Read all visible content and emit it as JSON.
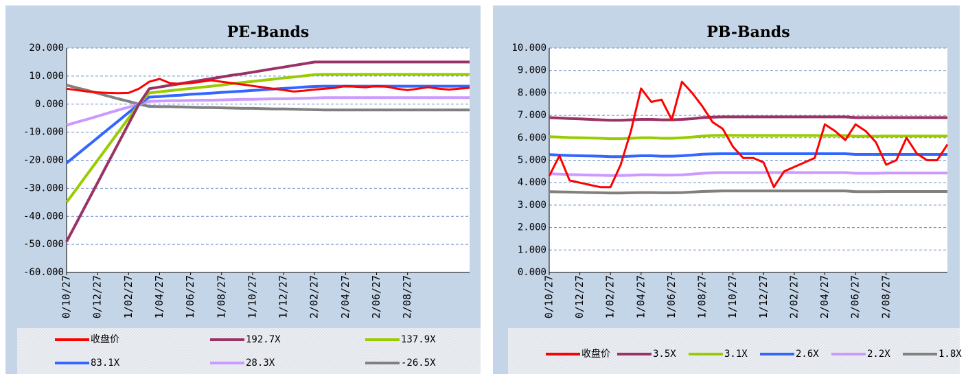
{
  "chart_data": [
    {
      "type": "line",
      "title": "PE-Bands",
      "grid": true,
      "legend": "bottom",
      "categories": [
        "0/10/27",
        null,
        null,
        "0/12/27",
        null,
        null,
        "1/02/27",
        null,
        null,
        "1/04/27",
        null,
        null,
        "1/06/27",
        null,
        null,
        "1/08/27",
        null,
        null,
        "1/10/27",
        null,
        null,
        "1/12/27",
        null,
        null,
        "2/02/27",
        null,
        null,
        "2/04/27",
        null,
        null,
        "2/06/27",
        null,
        null,
        "2/08/27",
        null,
        null,
        null,
        null,
        null,
        null
      ],
      "ylim": [
        -60,
        20
      ],
      "yticks": [
        {
          "value": -60,
          "label": "-60.000"
        },
        {
          "value": -50,
          "label": "-50.000"
        },
        {
          "value": -40,
          "label": "-40.000"
        },
        {
          "value": -30,
          "label": "-30.000"
        },
        {
          "value": -20,
          "label": "-20.000"
        },
        {
          "value": -10,
          "label": "-10.000"
        },
        {
          "value": 0,
          "label": "0.000"
        },
        {
          "value": 10,
          "label": "10.000"
        },
        {
          "value": 20,
          "label": "20.000"
        }
      ],
      "series": [
        {
          "name": "收盘价",
          "color": "#ff0000",
          "values": [
            5.5,
            5,
            4.5,
            4.2,
            4,
            3.9,
            4,
            5.5,
            8,
            9,
            7.5,
            7.2,
            7.5,
            8,
            8.5,
            8,
            7.5,
            7,
            6.5,
            6,
            5.5,
            5,
            4.5,
            4.8,
            5.2,
            5.5,
            5.8,
            6.5,
            6.2,
            6,
            6.5,
            6.2,
            5.5,
            5,
            5.5,
            6,
            5.5,
            5.2,
            5.5,
            5.8
          ]
        },
        {
          "name": "192.7X",
          "color": "#993366",
          "values": [
            -49,
            -42,
            -35,
            -28,
            -21,
            -14,
            -7,
            0,
            5.5,
            6.1,
            6.7,
            7.3,
            7.9,
            8.5,
            9.1,
            9.7,
            10.3,
            10.8,
            11.4,
            12,
            12.6,
            13.2,
            13.8,
            14.4,
            15,
            15,
            15,
            15,
            15,
            15,
            15,
            15,
            15,
            15,
            15,
            15,
            15,
            15,
            15,
            15
          ]
        },
        {
          "name": "137.9X",
          "color": "#99cc00",
          "values": [
            -35,
            -30,
            -25,
            -20,
            -15,
            -10,
            -5,
            0,
            4,
            4.4,
            4.8,
            5.2,
            5.6,
            6,
            6.4,
            6.8,
            7.3,
            7.7,
            8.1,
            8.5,
            8.9,
            9.3,
            9.7,
            10.1,
            10.5,
            10.6,
            10.6,
            10.6,
            10.6,
            10.6,
            10.6,
            10.6,
            10.6,
            10.6,
            10.6,
            10.6,
            10.6,
            10.6,
            10.6,
            10.6
          ]
        },
        {
          "name": "83.1X",
          "color": "#3366ff",
          "values": [
            -21,
            -18,
            -15,
            -12,
            -9,
            -6,
            -3,
            0,
            2.5,
            2.7,
            3,
            3.2,
            3.5,
            3.7,
            3.9,
            4.2,
            4.4,
            4.6,
            4.9,
            5.1,
            5.4,
            5.6,
            5.8,
            6.1,
            6.3,
            6.4,
            6.4,
            6.4,
            6.4,
            6.4,
            6.4,
            6.4,
            6.4,
            6.4,
            6.4,
            6.4,
            6.4,
            6.4,
            6.4,
            6.4
          ]
        },
        {
          "name": "28.3X",
          "color": "#cc99ff",
          "values": [
            -7.5,
            -6.4,
            -5.4,
            -4.3,
            -3.2,
            -2.1,
            -1.1,
            0,
            1,
            1.1,
            1.2,
            1.2,
            1.3,
            1.4,
            1.4,
            1.5,
            1.6,
            1.7,
            1.7,
            1.8,
            1.9,
            1.9,
            2,
            2.1,
            2.2,
            2.3,
            2.3,
            2.3,
            2.3,
            2.3,
            2.3,
            2.3,
            2.3,
            2.3,
            2.3,
            2.3,
            2.3,
            2.3,
            2.3,
            2.3
          ]
        },
        {
          "name": "-26.5X",
          "color": "#808080",
          "values": [
            6.8,
            5.8,
            4.9,
            3.9,
            2.9,
            1.9,
            1,
            0,
            -0.8,
            -0.9,
            -0.9,
            -1,
            -1.1,
            -1.2,
            -1.2,
            -1.3,
            -1.4,
            -1.5,
            -1.5,
            -1.6,
            -1.7,
            -1.7,
            -1.8,
            -1.9,
            -2,
            -2.1,
            -2.1,
            -2.1,
            -2.1,
            -2.1,
            -2.1,
            -2.1,
            -2.1,
            -2.1,
            -2.1,
            -2.1,
            -2.1,
            -2.1,
            -2.1,
            -2.1
          ]
        }
      ]
    },
    {
      "type": "line",
      "title": "PB-Bands",
      "grid": true,
      "legend": "bottom",
      "categories": [
        "0/10/27",
        null,
        null,
        "0/12/27",
        null,
        null,
        "1/02/27",
        null,
        null,
        "1/04/27",
        null,
        null,
        "1/06/27",
        null,
        null,
        "1/08/27",
        null,
        null,
        "1/10/27",
        null,
        null,
        "1/12/27",
        null,
        null,
        "2/02/27",
        null,
        null,
        "2/04/27",
        null,
        null,
        "2/06/27",
        null,
        null,
        "2/08/27",
        null,
        null,
        null,
        null,
        null,
        null
      ],
      "ylim": [
        0,
        10
      ],
      "yticks": [
        {
          "value": 0,
          "label": "0.000"
        },
        {
          "value": 1,
          "label": "1.000"
        },
        {
          "value": 2,
          "label": "2.000"
        },
        {
          "value": 3,
          "label": "3.000"
        },
        {
          "value": 4,
          "label": "4.000"
        },
        {
          "value": 5,
          "label": "5.000"
        },
        {
          "value": 6,
          "label": "6.000"
        },
        {
          "value": 7,
          "label": "7.000"
        },
        {
          "value": 8,
          "label": "8.000"
        },
        {
          "value": 9,
          "label": "9.000"
        },
        {
          "value": 10,
          "label": "10.000"
        }
      ],
      "series": [
        {
          "name": "收盘价",
          "color": "#ff0000",
          "values": [
            4.3,
            5.2,
            4.1,
            4,
            3.9,
            3.8,
            3.8,
            4.8,
            6.3,
            8.2,
            7.6,
            7.7,
            6.8,
            8.5,
            8,
            7.4,
            6.7,
            6.4,
            5.6,
            5.1,
            5.1,
            4.9,
            3.8,
            4.5,
            4.7,
            4.9,
            5.1,
            6.6,
            6.3,
            5.9,
            6.6,
            6.3,
            5.8,
            4.8,
            5,
            6,
            5.3,
            5,
            5,
            5.7
          ]
        },
        {
          "name": "3.5X",
          "color": "#993366",
          "values": [
            6.9,
            6.88,
            6.86,
            6.84,
            6.82,
            6.8,
            6.78,
            6.78,
            6.8,
            6.82,
            6.82,
            6.8,
            6.8,
            6.82,
            6.85,
            6.9,
            6.92,
            6.93,
            6.93,
            6.93,
            6.93,
            6.93,
            6.93,
            6.93,
            6.93,
            6.93,
            6.93,
            6.93,
            6.93,
            6.93,
            6.9,
            6.9,
            6.9,
            6.9,
            6.9,
            6.9,
            6.9,
            6.9,
            6.9,
            6.9
          ]
        },
        {
          "name": "3.1X",
          "color": "#99cc00",
          "values": [
            6.05,
            6.03,
            6.01,
            6,
            5.99,
            5.98,
            5.96,
            5.96,
            5.98,
            6,
            6,
            5.98,
            5.98,
            6,
            6.03,
            6.08,
            6.1,
            6.11,
            6.11,
            6.1,
            6.1,
            6.1,
            6.1,
            6.1,
            6.1,
            6.1,
            6.1,
            6.1,
            6.1,
            6.1,
            6.07,
            6.07,
            6.07,
            6.08,
            6.08,
            6.08,
            6.08,
            6.08,
            6.08,
            6.08
          ]
        },
        {
          "name": "2.6X",
          "color": "#3366ff",
          "values": [
            5.25,
            5.23,
            5.21,
            5.2,
            5.19,
            5.18,
            5.16,
            5.16,
            5.18,
            5.2,
            5.2,
            5.18,
            5.18,
            5.2,
            5.23,
            5.27,
            5.28,
            5.29,
            5.29,
            5.29,
            5.29,
            5.29,
            5.29,
            5.29,
            5.29,
            5.29,
            5.29,
            5.29,
            5.29,
            5.29,
            5.26,
            5.26,
            5.26,
            5.26,
            5.26,
            5.26,
            5.26,
            5.26,
            5.26,
            5.26
          ]
        },
        {
          "name": "2.2X",
          "color": "#cc99ff",
          "values": [
            4.4,
            4.38,
            4.36,
            4.35,
            4.34,
            4.33,
            4.32,
            4.32,
            4.33,
            4.35,
            4.35,
            4.34,
            4.34,
            4.35,
            4.38,
            4.42,
            4.44,
            4.45,
            4.45,
            4.45,
            4.45,
            4.45,
            4.45,
            4.45,
            4.45,
            4.45,
            4.45,
            4.45,
            4.45,
            4.45,
            4.42,
            4.42,
            4.42,
            4.43,
            4.43,
            4.43,
            4.43,
            4.43,
            4.43,
            4.43
          ]
        },
        {
          "name": "1.8X",
          "color": "#808080",
          "values": [
            3.6,
            3.59,
            3.58,
            3.57,
            3.56,
            3.55,
            3.54,
            3.54,
            3.55,
            3.56,
            3.56,
            3.55,
            3.55,
            3.56,
            3.58,
            3.61,
            3.62,
            3.63,
            3.63,
            3.63,
            3.63,
            3.63,
            3.63,
            3.63,
            3.63,
            3.63,
            3.63,
            3.63,
            3.63,
            3.63,
            3.6,
            3.6,
            3.6,
            3.61,
            3.61,
            3.61,
            3.61,
            3.61,
            3.61,
            3.61
          ]
        }
      ]
    }
  ]
}
